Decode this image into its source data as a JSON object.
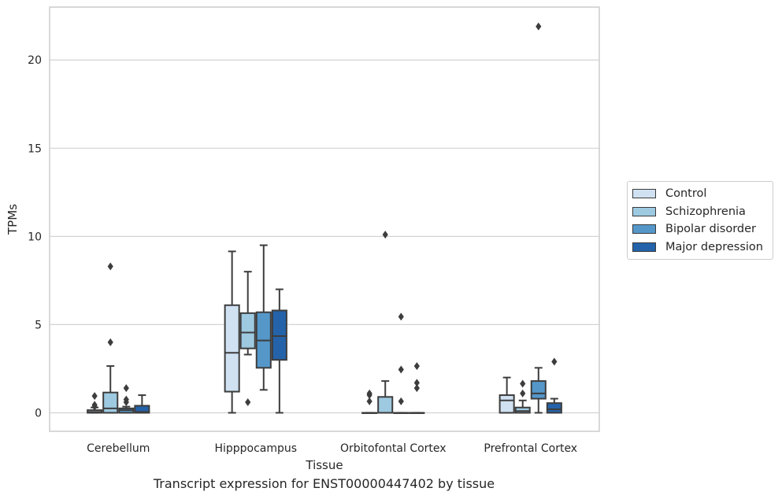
{
  "chart_data": {
    "type": "box",
    "title": "",
    "xlabel": "Tissue",
    "ylabel": "TPMs",
    "ylim": [
      -1.05,
      23.0
    ],
    "yticks": [
      0,
      5,
      10,
      15,
      20
    ],
    "grid": "horizontal",
    "legend_position": "right",
    "categories": [
      "Cerebellum",
      "Hipppocampus",
      "Orbitofontal Cortex",
      "Prefrontal Cortex"
    ],
    "series": [
      {
        "name": "Control",
        "color": "#d0e1f2",
        "boxes": [
          {
            "q1": 0.0,
            "median": 0.05,
            "q3": 0.15,
            "whisker_low": 0.0,
            "whisker_high": 0.3,
            "outliers": [
              0.35,
              0.45,
              0.95
            ]
          },
          {
            "q1": 1.2,
            "median": 3.4,
            "q3": 6.1,
            "whisker_low": 0.0,
            "whisker_high": 9.15,
            "outliers": []
          },
          {
            "q1": 0.0,
            "median": 0.0,
            "q3": 0.0,
            "whisker_low": 0.0,
            "whisker_high": 0.0,
            "outliers": [
              0.65,
              1.0,
              1.1
            ]
          },
          {
            "q1": 0.0,
            "median": 0.7,
            "q3": 1.0,
            "whisker_low": 0.0,
            "whisker_high": 2.0,
            "outliers": []
          }
        ]
      },
      {
        "name": "Schizophrenia",
        "color": "#9ecae1",
        "boxes": [
          {
            "q1": 0.0,
            "median": 0.25,
            "q3": 1.15,
            "whisker_low": 0.0,
            "whisker_high": 2.65,
            "outliers": [
              4.0,
              8.3
            ]
          },
          {
            "q1": 3.65,
            "median": 4.55,
            "q3": 5.65,
            "whisker_low": 3.3,
            "whisker_high": 8.0,
            "outliers": [
              0.6
            ]
          },
          {
            "q1": 0.0,
            "median": 0.0,
            "q3": 0.9,
            "whisker_low": 0.0,
            "whisker_high": 1.8,
            "outliers": [
              10.1
            ]
          },
          {
            "q1": 0.0,
            "median": 0.1,
            "q3": 0.3,
            "whisker_low": 0.0,
            "whisker_high": 0.7,
            "outliers": [
              1.1,
              1.65
            ]
          }
        ]
      },
      {
        "name": "Bipolar disorder",
        "color": "#5597c9",
        "boxes": [
          {
            "q1": 0.0,
            "median": 0.15,
            "q3": 0.25,
            "whisker_low": 0.0,
            "whisker_high": 0.35,
            "outliers": [
              0.6,
              0.75,
              1.4
            ]
          },
          {
            "q1": 2.55,
            "median": 4.1,
            "q3": 5.7,
            "whisker_low": 1.3,
            "whisker_high": 9.5,
            "outliers": []
          },
          {
            "q1": 0.0,
            "median": 0.0,
            "q3": 0.0,
            "whisker_low": 0.0,
            "whisker_high": 0.0,
            "outliers": [
              0.65,
              2.45,
              5.45
            ]
          },
          {
            "q1": 0.8,
            "median": 1.1,
            "q3": 1.8,
            "whisker_low": 0.0,
            "whisker_high": 2.55,
            "outliers": [
              21.9
            ]
          }
        ]
      },
      {
        "name": "Major depression",
        "color": "#2463a9",
        "boxes": [
          {
            "q1": 0.0,
            "median": 0.05,
            "q3": 0.4,
            "whisker_low": 0.0,
            "whisker_high": 1.0,
            "outliers": []
          },
          {
            "q1": 3.0,
            "median": 4.35,
            "q3": 5.8,
            "whisker_low": 0.0,
            "whisker_high": 7.0,
            "outliers": []
          },
          {
            "q1": 0.0,
            "median": 0.0,
            "q3": 0.0,
            "whisker_low": 0.0,
            "whisker_high": 0.0,
            "outliers": [
              1.4,
              1.7,
              2.65
            ]
          },
          {
            "q1": 0.0,
            "median": 0.2,
            "q3": 0.55,
            "whisker_low": 0.0,
            "whisker_high": 0.8,
            "outliers": [
              2.9
            ]
          }
        ]
      }
    ],
    "caption": "Transcript expression for ENST00000447402 by tissue"
  }
}
